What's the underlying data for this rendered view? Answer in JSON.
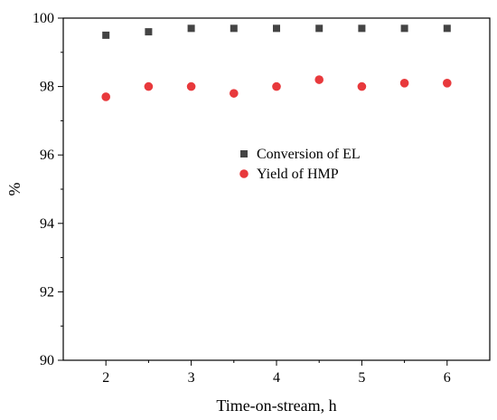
{
  "chart_data": {
    "type": "scatter",
    "title": "",
    "xlabel": "Time-on-stream, h",
    "ylabel": "%",
    "xlim": [
      1.5,
      6.5
    ],
    "ylim": [
      90,
      100
    ],
    "xticks": [
      2,
      3,
      4,
      5,
      6
    ],
    "yticks": [
      90,
      92,
      94,
      96,
      98,
      100
    ],
    "xtick_labels": [
      "2",
      "3",
      "4",
      "5",
      "6"
    ],
    "ytick_labels": [
      "90",
      "92",
      "94",
      "96",
      "98",
      "100"
    ],
    "grid": false,
    "legend_position": "center-right",
    "series": [
      {
        "name": "Conversion of EL",
        "marker": "square",
        "color": "#444444",
        "x": [
          2,
          2.5,
          3,
          3.5,
          4,
          4.5,
          5,
          5.5,
          6
        ],
        "y": [
          99.5,
          99.6,
          99.7,
          99.7,
          99.7,
          99.7,
          99.7,
          99.7,
          99.7
        ]
      },
      {
        "name": "Yield of HMP",
        "marker": "circle",
        "color": "#e8393c",
        "x": [
          2,
          2.5,
          3,
          3.5,
          4,
          4.5,
          5,
          5.5,
          6
        ],
        "y": [
          97.7,
          98.0,
          98.0,
          97.8,
          98.0,
          98.2,
          98.0,
          98.1,
          98.1
        ]
      }
    ]
  }
}
